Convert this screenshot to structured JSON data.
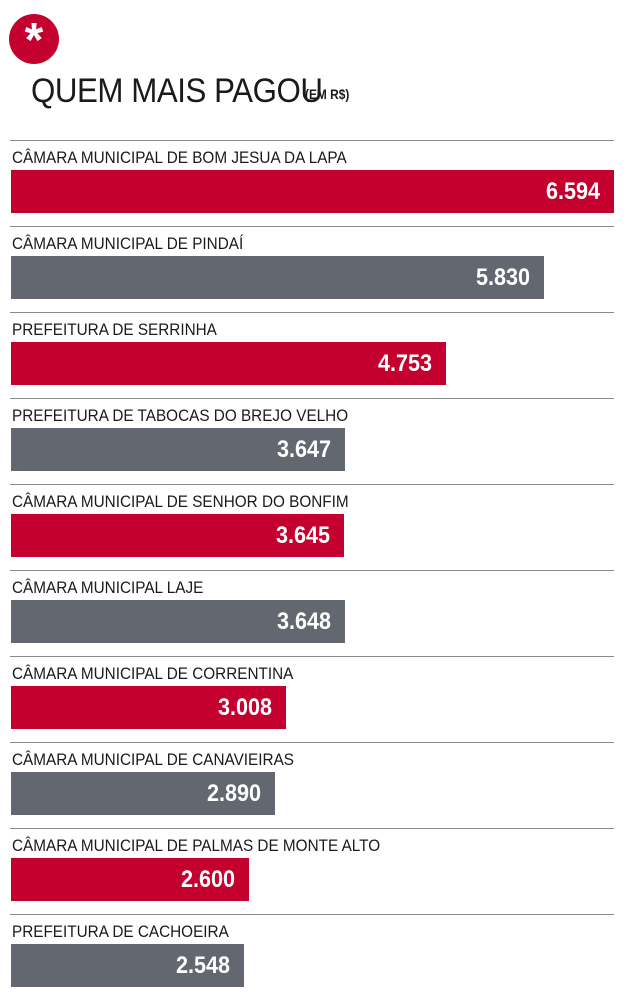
{
  "header": {
    "badge_symbol": "*",
    "title": "QUEM MAIS PAGOU",
    "unit": "(EM R$)"
  },
  "colors": {
    "accent": "#c4002f",
    "secondary": "#636870"
  },
  "chart_data": {
    "type": "bar",
    "orientation": "horizontal",
    "title": "QUEM MAIS PAGOU",
    "unit": "(EM R$)",
    "categories": [
      "CÂMARA MUNICIPAL DE BOM JESUA DA LAPA",
      "CÂMARA MUNICIPAL  DE PINDAÍ",
      "PREFEITURA DE SERRINHA",
      "PREFEITURA DE TABOCAS DO BREJO VELHO",
      "CÂMARA MUNICIPAL DE SENHOR DO BONFIM",
      "CÂMARA MUNICIPAL LAJE",
      "CÂMARA MUNICIPAL DE CORRENTINA",
      "CÂMARA MUNICIPAL DE CANAVIEIRAS",
      "CÂMARA MUNICIPAL DE PALMAS DE MONTE ALTO",
      "PREFEITURA DE CACHOEIRA"
    ],
    "values": [
      6594,
      5830,
      4753,
      3647,
      3645,
      3648,
      3008,
      2890,
      2600,
      2548
    ],
    "value_labels": [
      "6.594",
      "5.830",
      "4.753",
      "3.647",
      "3.645",
      "3.648",
      "3.008",
      "2.890",
      "2.600",
      "2.548"
    ],
    "bar_colors": [
      "#c4002f",
      "#636870",
      "#c4002f",
      "#636870",
      "#c4002f",
      "#636870",
      "#c4002f",
      "#636870",
      "#c4002f",
      "#636870"
    ],
    "xlim": [
      0,
      6594
    ],
    "grid": false,
    "legend": "none"
  }
}
